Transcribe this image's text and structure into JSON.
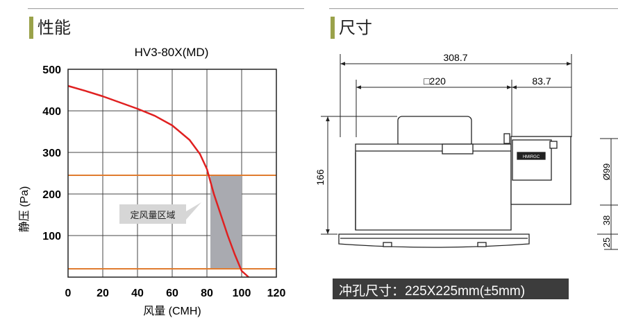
{
  "performance": {
    "heading": "性能",
    "chart_data": {
      "type": "line",
      "title": "HV3-80X(MD)",
      "xlabel": "风量 (CMH)",
      "ylabel": "静压 (Pa)",
      "xlim": [
        0,
        120
      ],
      "ylim": [
        0,
        500
      ],
      "x_ticks": [
        "0",
        "20",
        "40",
        "60",
        "80",
        "100",
        "120"
      ],
      "y_ticks": [
        "100",
        "200",
        "300",
        "400",
        "500"
      ],
      "grid": true,
      "series": [
        {
          "color": "#e02020",
          "x": [
            0,
            10,
            20,
            30,
            40,
            50,
            60,
            70,
            76,
            80,
            82,
            84,
            88,
            92,
            96,
            100,
            104
          ],
          "y": [
            460,
            448,
            435,
            420,
            405,
            388,
            365,
            330,
            296,
            260,
            230,
            200,
            150,
            100,
            55,
            15,
            0
          ]
        }
      ],
      "rated_band": {
        "x_min": 82,
        "x_max": 100,
        "y_min": 20,
        "y_max": 245,
        "color": "#a9aab0",
        "line_color": "#e07b2e"
      },
      "annotation": "定风量区域"
    }
  },
  "dimensions": {
    "heading": "尺寸",
    "overall_width": "308.7",
    "body_width": "□220",
    "side_width": "83.7",
    "height": "166",
    "duct_diameter": "Ø99",
    "dim_38": "38",
    "dim_25": "25",
    "label_brand": "HMIRGC",
    "punch_hole": "冲孔尺寸：225X225mm(±5mm)"
  }
}
